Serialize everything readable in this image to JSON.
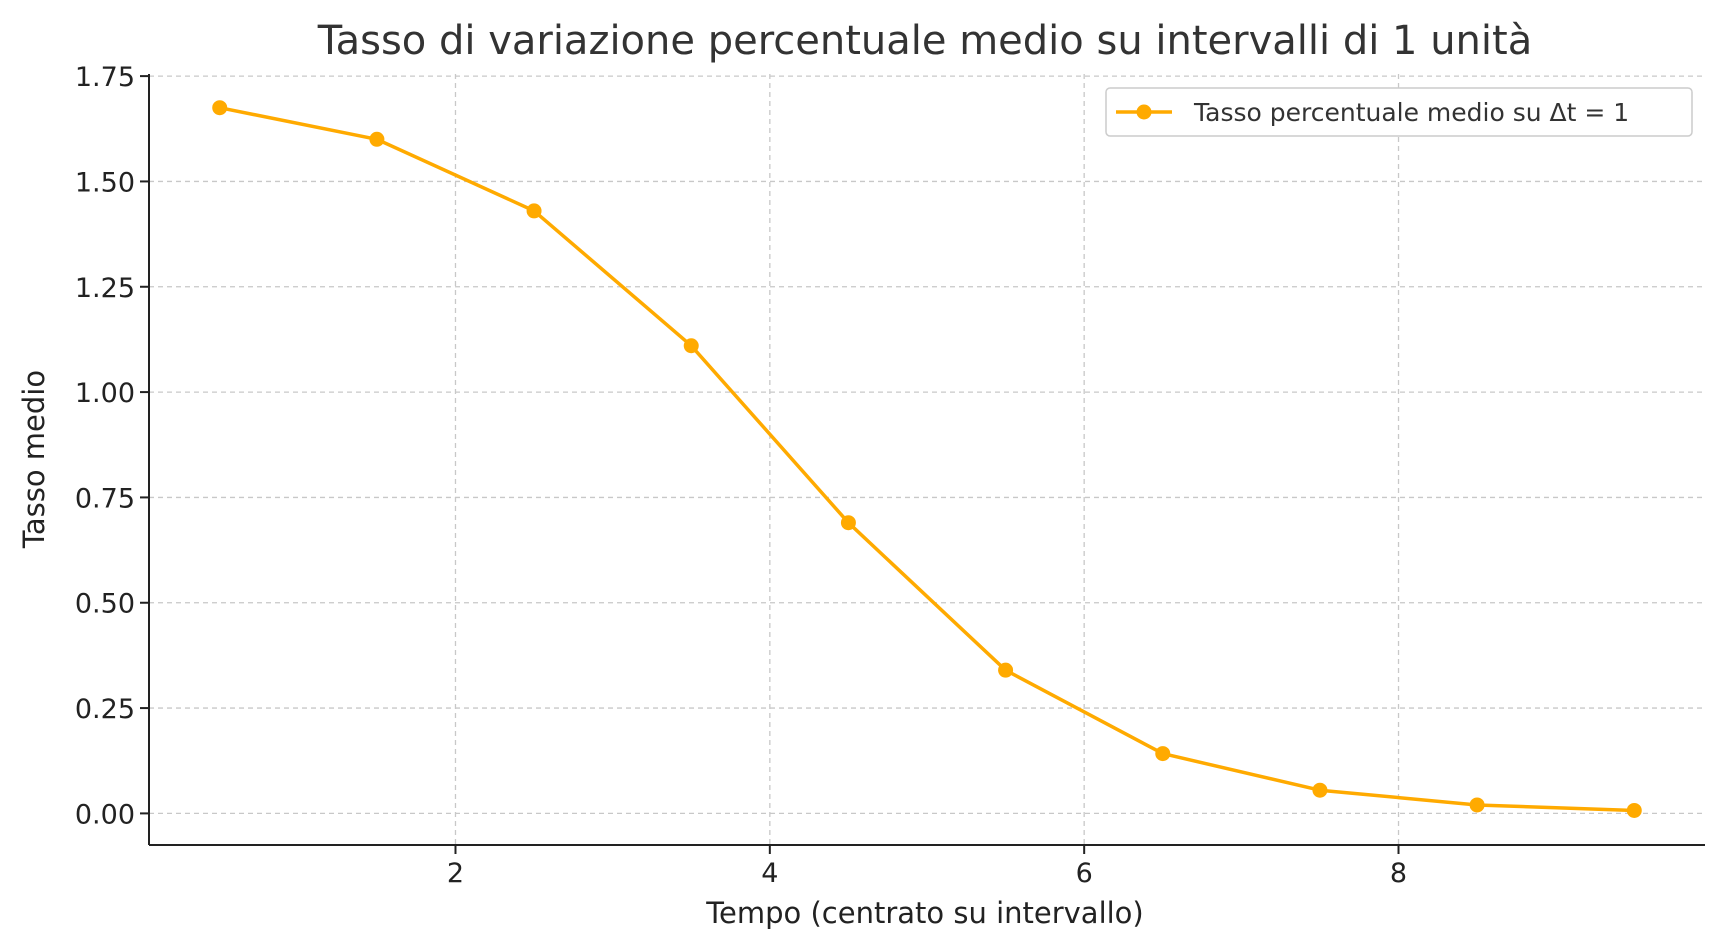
{
  "chart_data": {
    "type": "line",
    "title": "Tasso di variazione percentuale medio su intervalli di 1 unità",
    "xlabel": "Tempo (centrato su intervallo)",
    "ylabel": "Tasso medio",
    "xlim": [
      0.05,
      9.95
    ],
    "ylim": [
      -0.075,
      1.755
    ],
    "xticks": [
      2,
      4,
      6,
      8
    ],
    "xtick_labels": [
      "2",
      "4",
      "6",
      "8"
    ],
    "yticks": [
      0.0,
      0.25,
      0.5,
      0.75,
      1.0,
      1.25,
      1.5,
      1.75
    ],
    "ytick_labels": [
      "0.00",
      "0.25",
      "0.50",
      "0.75",
      "1.00",
      "1.25",
      "1.50",
      "1.75"
    ],
    "grid": true,
    "legend_position": "top-right",
    "series": [
      {
        "name": "Tasso percentuale medio su Δt = 1",
        "color": "#FFAA00",
        "marker": "circle",
        "x": [
          0.5,
          1.5,
          2.5,
          3.5,
          4.5,
          5.5,
          6.5,
          7.5,
          8.5,
          9.5
        ],
        "y": [
          1.675,
          1.6,
          1.43,
          1.11,
          0.69,
          0.34,
          0.142,
          0.055,
          0.02,
          0.007
        ]
      }
    ]
  }
}
